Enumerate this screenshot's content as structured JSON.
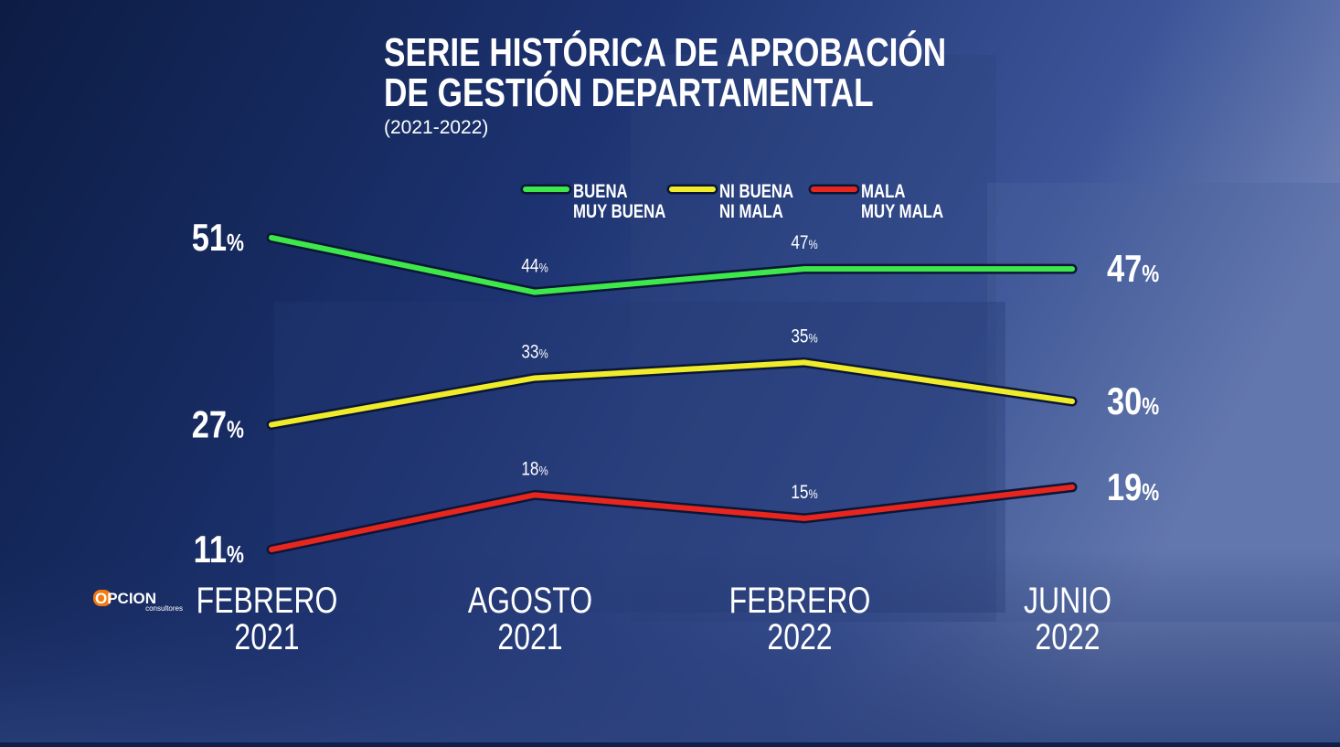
{
  "chart_data": {
    "type": "line",
    "title": "SERIE HISTÓRICA DE APROBACIÓN\nDE GESTIÓN DEPARTAMENTAL",
    "subtitle": "(2021-2022)",
    "categories": [
      "FEBRERO\n2021",
      "AGOSTO\n2021",
      "FEBRERO\n2022",
      "JUNIO\n2022"
    ],
    "series": [
      {
        "name": "BUENA\nMUY BUENA",
        "color": "#3ee84a",
        "values": [
          51,
          44,
          47,
          47
        ],
        "value_labels": [
          "51%",
          "44%",
          "47%",
          "47%"
        ]
      },
      {
        "name": "NI BUENA\nNI MALA",
        "color": "#f0ec2a",
        "values": [
          27,
          33,
          35,
          30
        ],
        "value_labels": [
          "27%",
          "33%",
          "35%",
          "30%"
        ]
      },
      {
        "name": "MALA\nMUY MALA",
        "color": "#e8261e",
        "values": [
          11,
          18,
          15,
          19
        ],
        "value_labels": [
          "11%",
          "18%",
          "15%",
          "19%"
        ]
      }
    ],
    "logo": {
      "name": "OPCION",
      "tagline": "consultores"
    }
  }
}
